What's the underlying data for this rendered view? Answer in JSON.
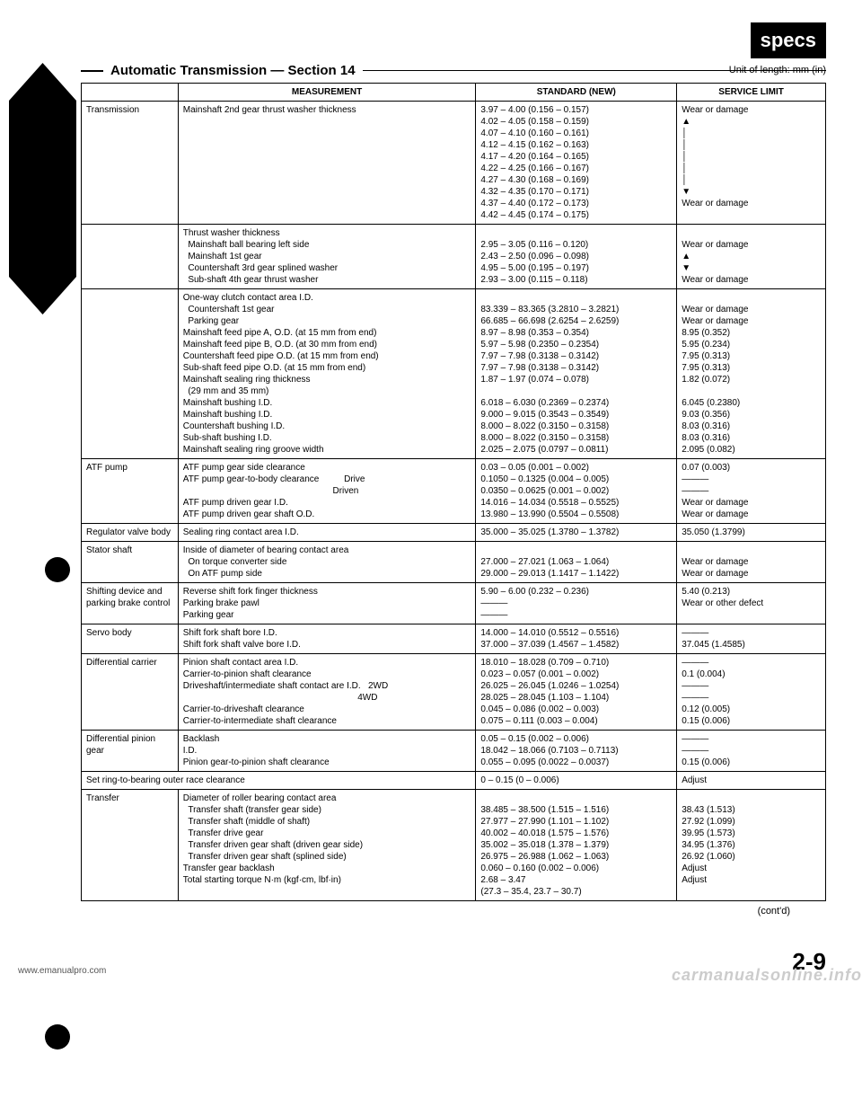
{
  "specs_label": "specs",
  "unit_label": "Unit of length: mm (in)",
  "section_title": "Automatic Transmission — Section 14",
  "headers": {
    "measurement": "MEASUREMENT",
    "standard": "STANDARD (NEW)",
    "limit": "SERVICE LIMIT"
  },
  "rows": [
    {
      "comp": "Transmission",
      "meas": "Mainshaft 2nd gear thrust washer thickness",
      "std": "3.97 – 4.00 (0.156 – 0.157)\n4.02 – 4.05 (0.158 – 0.159)\n4.07 – 4.10 (0.160 – 0.161)\n4.12 – 4.15 (0.162 – 0.163)\n4.17 – 4.20 (0.164 – 0.165)\n4.22 – 4.25 (0.166 – 0.167)\n4.27 – 4.30 (0.168 – 0.169)\n4.32 – 4.35 (0.170 – 0.171)\n4.37 – 4.40 (0.172 – 0.173)\n4.42 – 4.45 (0.174 – 0.175)",
      "lim": "Wear or damage\n▲\n│\n│\n│\n│\n│\n▼\nWear or damage"
    },
    {
      "comp": "",
      "meas": "Thrust washer thickness\n  Mainshaft ball bearing left side\n  Mainshaft 1st gear\n  Countershaft 3rd gear splined washer\n  Sub-shaft 4th gear thrust washer",
      "std": "\n2.95 – 3.05 (0.116 – 0.120)\n2.43 – 2.50 (0.096 – 0.098)\n4.95 – 5.00 (0.195 – 0.197)\n2.93 – 3.00 (0.115 – 0.118)",
      "lim": "\nWear or damage\n▲\n▼\nWear or damage"
    },
    {
      "comp": "",
      "meas": "One-way clutch contact area I.D.\n  Countershaft 1st gear\n  Parking gear\nMainshaft feed pipe A, O.D. (at 15 mm from end)\nMainshaft feed pipe B, O.D. (at 30 mm from end)\nCountershaft feed pipe O.D. (at 15 mm from end)\nSub-shaft feed pipe O.D. (at 15 mm from end)\nMainshaft sealing ring thickness\n  (29 mm and 35 mm)\nMainshaft bushing I.D.\nMainshaft bushing I.D.\nCountershaft bushing I.D.\nSub-shaft bushing I.D.\nMainshaft sealing ring groove width",
      "std": "\n83.339 – 83.365 (3.2810 – 3.2821)\n66.685 – 66.698 (2.6254 – 2.6259)\n8.97 – 8.98 (0.353 – 0.354)\n5.97 – 5.98 (0.2350 – 0.2354)\n7.97 – 7.98 (0.3138 – 0.3142)\n7.97 – 7.98 (0.3138 – 0.3142)\n1.87 – 1.97 (0.074 – 0.078)\n\n6.018 – 6.030 (0.2369 – 0.2374)\n9.000 – 9.015 (0.3543 – 0.3549)\n8.000 – 8.022 (0.3150 – 0.3158)\n8.000 – 8.022 (0.3150 – 0.3158)\n2.025 – 2.075 (0.0797 – 0.0811)",
      "lim": "\nWear or damage\nWear or damage\n8.95 (0.352)\n5.95 (0.234)\n7.95 (0.313)\n7.95 (0.313)\n1.82 (0.072)\n\n6.045 (0.2380)\n9.03 (0.356)\n8.03 (0.316)\n8.03 (0.316)\n2.095 (0.082)"
    },
    {
      "comp": "ATF pump",
      "meas": "ATF pump gear side clearance\nATF pump gear-to-body clearance          Drive\n                                                            Driven\nATF pump driven gear I.D.\nATF pump driven gear shaft O.D.",
      "std": "0.03 – 0.05 (0.001 – 0.002)\n0.1050 – 0.1325 (0.004 – 0.005)\n0.0350 – 0.0625 (0.001 – 0.002)\n14.016 – 14.034 (0.5518 – 0.5525)\n13.980 – 13.990 (0.5504 – 0.5508)",
      "lim": "0.07 (0.003)\n———\n———\nWear or damage\nWear or damage"
    },
    {
      "comp": "Regulator valve body",
      "meas": "Sealing ring contact area I.D.",
      "std": "35.000 – 35.025 (1.3780 – 1.3782)",
      "lim": "35.050 (1.3799)"
    },
    {
      "comp": "Stator shaft",
      "meas": "Inside of diameter of bearing contact area\n  On torque converter side\n  On ATF pump side",
      "std": "\n27.000 – 27.021 (1.063 – 1.064)\n29.000 – 29.013 (1.1417 – 1.1422)",
      "lim": "\nWear or damage\nWear or damage"
    },
    {
      "comp": "Shifting device and parking brake control",
      "meas": "Reverse shift fork finger thickness\nParking brake pawl\nParking gear",
      "std": "5.90 – 6.00 (0.232 – 0.236)\n———\n———",
      "lim": "5.40 (0.213)\nWear or other defect"
    },
    {
      "comp": "Servo body",
      "meas": "Shift fork shaft bore I.D.\nShift fork shaft valve bore I.D.",
      "std": "14.000 – 14.010 (0.5512 – 0.5516)\n37.000 – 37.039 (1.4567 – 1.4582)",
      "lim": "———\n37.045 (1.4585)"
    },
    {
      "comp": "Differential carrier",
      "meas": "Pinion shaft contact area I.D.\nCarrier-to-pinion shaft clearance\nDriveshaft/intermediate shaft contact are I.D.   2WD\n                                                                      4WD\nCarrier-to-driveshaft clearance\nCarrier-to-intermediate shaft clearance",
      "std": "18.010 – 18.028 (0.709 – 0.710)\n0.023 – 0.057 (0.001 – 0.002)\n26.025 – 26.045 (1.0246 – 1.0254)\n28.025 – 28.045 (1.103 – 1.104)\n0.045 – 0.086 (0.002 – 0.003)\n0.075 – 0.111 (0.003 – 0.004)",
      "lim": "———\n0.1 (0.004)\n———\n———\n0.12 (0.005)\n0.15 (0.006)"
    },
    {
      "comp": "Differential pinion gear",
      "meas": "Backlash\nI.D.\nPinion gear-to-pinion shaft clearance",
      "std": "0.05 – 0.15 (0.002 – 0.006)\n18.042 – 18.066 (0.7103 – 0.7113)\n0.055 – 0.095 (0.0022 – 0.0037)",
      "lim": "———\n———\n0.15 (0.006)"
    },
    {
      "comp": "Set ring-to-bearing outer race clearance",
      "meas": "",
      "std": "0 – 0.15 (0 – 0.006)",
      "lim": "Adjust",
      "span": true
    },
    {
      "comp": "Transfer",
      "meas": "Diameter of roller bearing contact area\n  Transfer shaft (transfer gear side)\n  Transfer shaft (middle of shaft)\n  Transfer drive gear\n  Transfer driven gear shaft (driven gear side)\n  Transfer driven gear shaft (splined side)\nTransfer gear backlash\nTotal starting torque N·m (kgf·cm, lbf·in)",
      "std": "\n38.485 – 38.500 (1.515 – 1.516)\n27.977 – 27.990 (1.101 – 1.102)\n40.002 – 40.018 (1.575 – 1.576)\n35.002 – 35.018 (1.378 – 1.379)\n26.975 – 26.988 (1.062 – 1.063)\n0.060 – 0.160 (0.002 – 0.006)\n2.68 – 3.47\n(27.3 – 35.4, 23.7 – 30.7)",
      "lim": "\n38.43 (1.513)\n27.92 (1.099)\n39.95 (1.573)\n34.95 (1.376)\n26.92 (1.060)\nAdjust\nAdjust"
    }
  ],
  "contd": "(cont'd)",
  "url": "www.emanualpro.com",
  "page_num": "2-9",
  "watermark": "carmanualsonline.info"
}
